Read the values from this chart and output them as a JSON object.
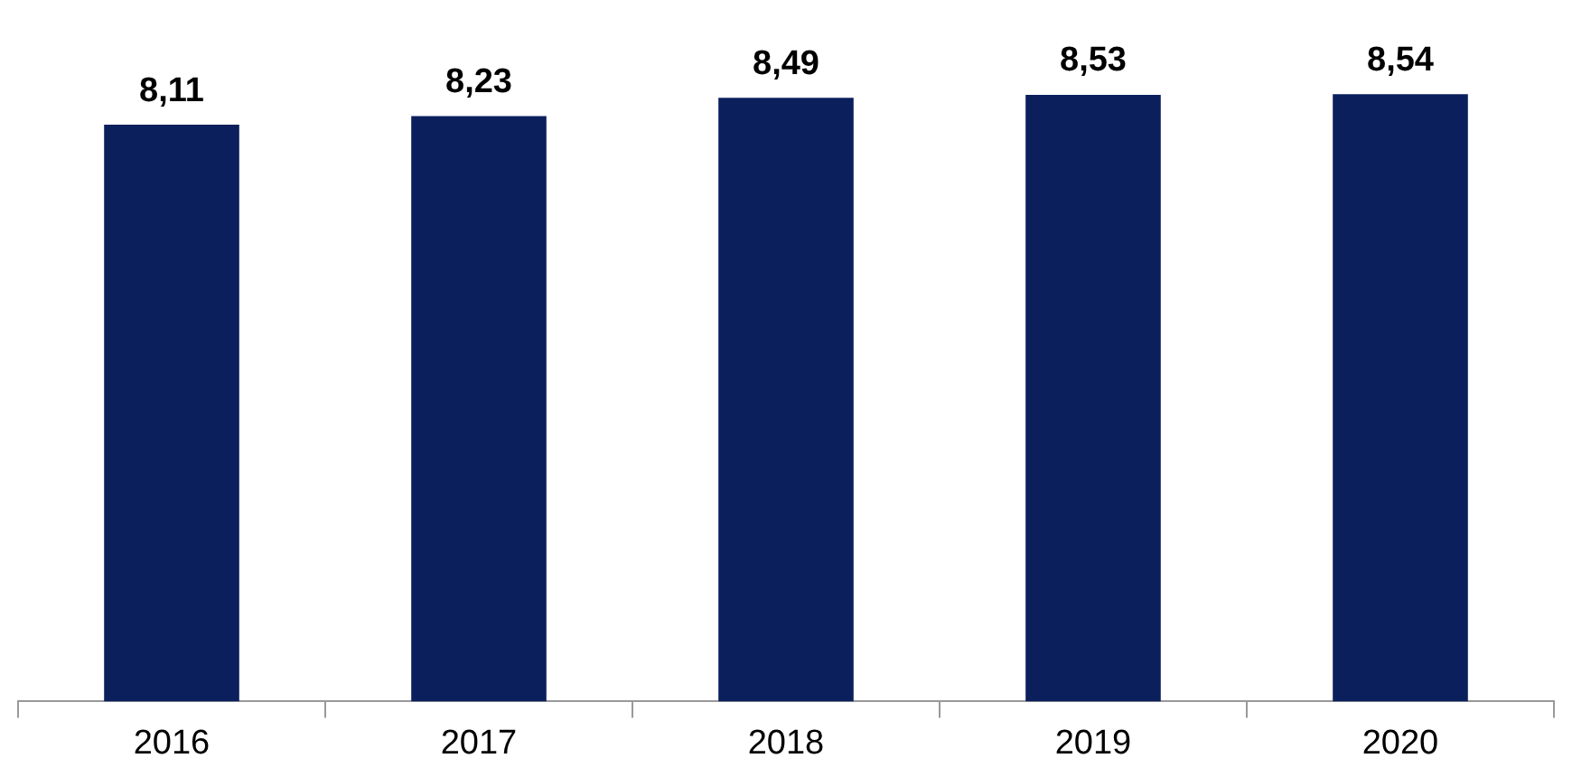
{
  "chart_data": {
    "type": "bar",
    "categories": [
      "2016",
      "2017",
      "2018",
      "2019",
      "2020"
    ],
    "values": [
      8.11,
      8.23,
      8.49,
      8.53,
      8.54
    ],
    "value_labels": [
      "8,11",
      "8,23",
      "8,49",
      "8,53",
      "8,54"
    ],
    "color": "#0b1f5c",
    "grid": false,
    "legend": false
  }
}
